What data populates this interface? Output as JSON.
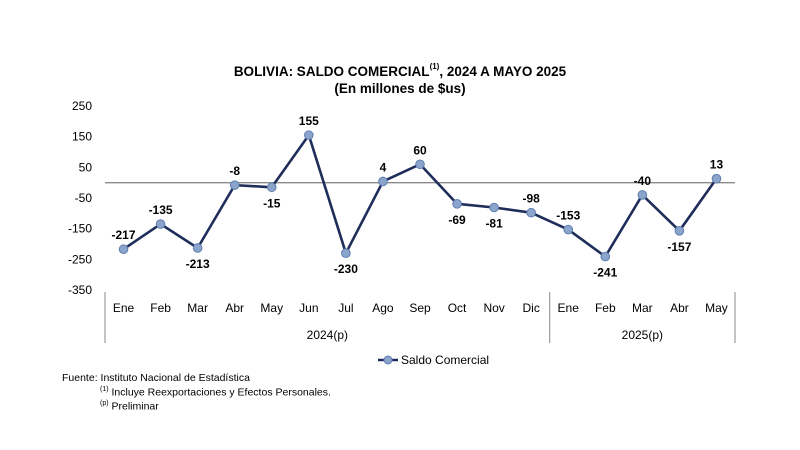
{
  "chart_data": {
    "type": "line",
    "title_prefix": "BOLIVIA: SALDO COMERCIAL",
    "title_superscript": "(1)",
    "title_suffix": ", 2024 A MAYO 2025",
    "subtitle": "(En millones de $us)",
    "categories": [
      "Ene",
      "Feb",
      "Mar",
      "Abr",
      "May",
      "Jun",
      "Jul",
      "Ago",
      "Sep",
      "Oct",
      "Nov",
      "Dic",
      "Ene",
      "Feb",
      "Mar",
      "Abr",
      "May"
    ],
    "groups": [
      {
        "label": "2024(p)",
        "count": 12
      },
      {
        "label": "2025(p)",
        "count": 5
      }
    ],
    "series": [
      {
        "name": "Saldo Comercial",
        "values": [
          -217,
          -135,
          -213,
          -8,
          -15,
          155,
          -230,
          4,
          60,
          -69,
          -81,
          -98,
          -153,
          -241,
          -40,
          -157,
          13
        ]
      }
    ],
    "label_positions": [
      "above",
      "above",
      "below",
      "above",
      "below",
      "above",
      "below",
      "above",
      "above",
      "below",
      "below",
      "above",
      "above",
      "below",
      "above",
      "below",
      "above"
    ],
    "yticks": [
      250,
      150,
      50,
      -50,
      -150,
      -250,
      -350
    ],
    "ylim": [
      -350,
      250
    ],
    "baseline": 0,
    "legend_position": "bottom-center",
    "line_color": "#1f2d5a",
    "marker_color": "#8aa4cc"
  },
  "footnotes": {
    "source": "Fuente: Instituto Nacional de Estadística",
    "note1_mark": "(1)",
    "note1_text": " Incluye Reexportaciones y Efectos Personales.",
    "note2_mark": "(p)",
    "note2_text": " Preliminar"
  }
}
